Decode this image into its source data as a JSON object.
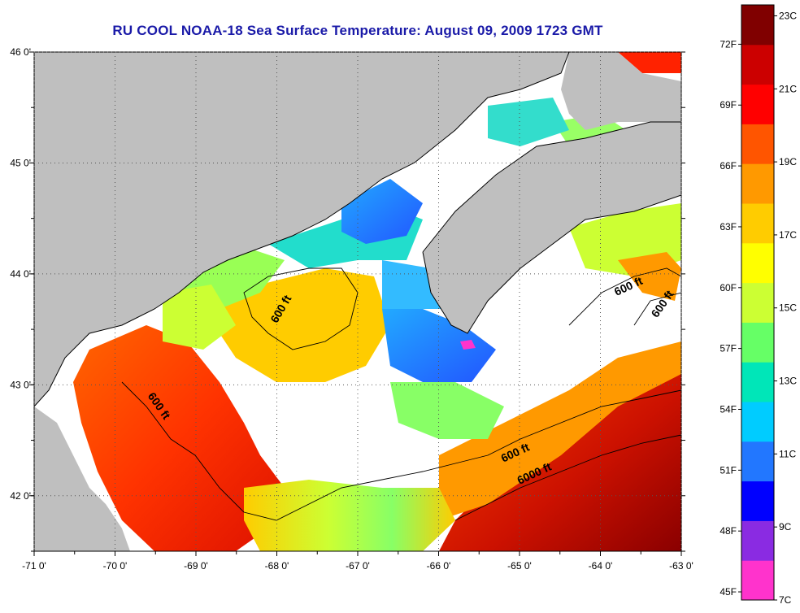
{
  "title": "RU COOL  NOAA-18  Sea Surface Temperature:  August 09, 2009 1723 GMT",
  "map": {
    "lon_range": [
      -71,
      -63
    ],
    "lat_range": [
      41.5,
      46.0
    ],
    "lon_ticks": [
      "-71 0'",
      "-70 0'",
      "-69 0'",
      "-68 0'",
      "-67 0'",
      "-66 0'",
      "-65 0'",
      "-64 0'",
      "-63 0'"
    ],
    "lat_ticks": [
      "46 0'",
      "45 0'",
      "44 0'",
      "43 0'",
      "42 0'"
    ],
    "land_color": "#bfbfbf",
    "cloud_color": "#ffffff",
    "contour_labels": [
      {
        "text": "600 ft",
        "lon": -68.0,
        "lat": 43.55
      },
      {
        "text": "600 ft",
        "lon": -69.6,
        "lat": 42.9
      },
      {
        "text": "600 ft",
        "lon": -63.8,
        "lat": 43.8
      },
      {
        "text": "600 ft",
        "lon": -63.3,
        "lat": 43.6
      },
      {
        "text": "600 ft",
        "lon": -65.2,
        "lat": 42.3
      },
      {
        "text": "6000 ft",
        "lon": -65.0,
        "lat": 42.1
      }
    ]
  },
  "colorbar": {
    "left_labels": [
      "72F",
      "69F",
      "66F",
      "63F",
      "60F",
      "57F",
      "54F",
      "51F",
      "48F",
      "45F"
    ],
    "right_labels": [
      "23C",
      "21C",
      "19C",
      "17C",
      "15C",
      "13C",
      "11C",
      "9C",
      "7C"
    ],
    "colors": [
      "#ff33cc",
      "#8a2be2",
      "#0000ff",
      "#2277ff",
      "#00ccff",
      "#00e6b8",
      "#66ff66",
      "#ccff33",
      "#ffff00",
      "#ffcc00",
      "#ff9900",
      "#ff5500",
      "#ff0000",
      "#cc0000",
      "#800000"
    ]
  }
}
